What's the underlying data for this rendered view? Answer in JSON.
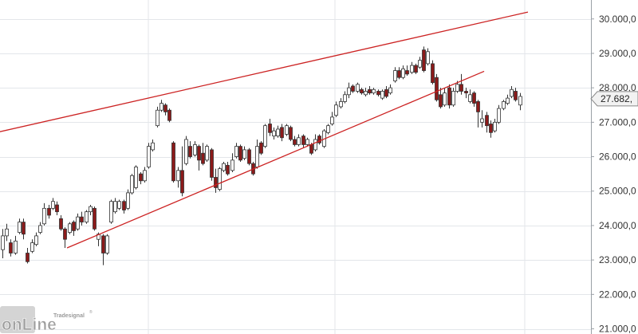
{
  "watermark": {
    "brand": "Tradesignal",
    "mark": "®",
    "product": "onLine"
  },
  "colors": {
    "up_fill": "#ffffff",
    "down_fill": "#8b1a1a",
    "candle_stroke": "#333333",
    "trendline": "#cc2222",
    "grid": "#e3e6ea"
  },
  "chart_data": {
    "type": "candlestick",
    "title": "",
    "xlabel": "",
    "ylabel": "",
    "ylim": [
      20850,
      30550
    ],
    "yticks": [
      {
        "value": 21000,
        "label": "21.000,0"
      },
      {
        "value": 22000,
        "label": "22.000,0"
      },
      {
        "value": 23000,
        "label": "23.000,0"
      },
      {
        "value": 24000,
        "label": "24.000,0"
      },
      {
        "value": 25000,
        "label": "25.000,0"
      },
      {
        "value": 26000,
        "label": "26.000,0"
      },
      {
        "value": 27000,
        "label": "27.000,0"
      },
      {
        "value": 28000,
        "label": "28.000,0"
      },
      {
        "value": 29000,
        "label": "29.000,0"
      },
      {
        "value": 30000,
        "label": "30.000,0"
      }
    ],
    "last_price": {
      "value": 27682,
      "label": "27.682,"
    },
    "grid": true,
    "candles": [
      [
        23300,
        23700,
        23050,
        23900
      ],
      [
        23700,
        23900,
        23550,
        24050
      ],
      [
        23500,
        23200,
        23100,
        23600
      ],
      [
        23200,
        23550,
        23150,
        23700
      ],
      [
        23800,
        24100,
        23750,
        24200
      ],
      [
        24100,
        23750,
        23600,
        24200
      ],
      [
        23200,
        22950,
        22900,
        23350
      ],
      [
        23250,
        23500,
        23200,
        23600
      ],
      [
        23450,
        23700,
        23400,
        23800
      ],
      [
        23800,
        24000,
        23750,
        24100
      ],
      [
        24050,
        24500,
        24000,
        24650
      ],
      [
        24500,
        24300,
        24200,
        24600
      ],
      [
        24500,
        24700,
        24450,
        24800
      ],
      [
        24600,
        24400,
        24300,
        24700
      ],
      [
        24200,
        23900,
        23850,
        24300
      ],
      [
        23900,
        23600,
        23350,
        23950
      ],
      [
        23800,
        24050,
        23750,
        24100
      ],
      [
        24100,
        23850,
        23700,
        24150
      ],
      [
        23900,
        24250,
        23850,
        24350
      ],
      [
        24250,
        24100,
        24000,
        24400
      ],
      [
        24100,
        24400,
        24050,
        24450
      ],
      [
        24400,
        24550,
        24300,
        24600
      ],
      [
        24500,
        23900,
        23850,
        24550
      ],
      [
        23600,
        23750,
        23400,
        23800
      ],
      [
        23700,
        23200,
        22850,
        23750
      ],
      [
        23200,
        23700,
        23150,
        23750
      ],
      [
        24100,
        24700,
        24050,
        24750
      ],
      [
        24400,
        24700,
        24350,
        24800
      ],
      [
        24500,
        24700,
        24450,
        24750
      ],
      [
        24700,
        24450,
        24350,
        24750
      ],
      [
        24500,
        24950,
        24450,
        25050
      ],
      [
        24950,
        25450,
        24900,
        25500
      ],
      [
        25100,
        25700,
        25050,
        25750
      ],
      [
        25500,
        25300,
        25200,
        25550
      ],
      [
        25300,
        25600,
        25250,
        25700
      ],
      [
        25700,
        26300,
        25650,
        26400
      ],
      [
        26200,
        26400,
        26150,
        26500
      ],
      [
        26900,
        27350,
        26850,
        27450
      ],
      [
        27350,
        27550,
        27300,
        27650
      ],
      [
        27500,
        27300,
        27200,
        27550
      ],
      [
        27350,
        27050,
        27000,
        27400
      ],
      [
        26400,
        25300,
        25250,
        26450
      ],
      [
        25300,
        25600,
        25100,
        25700
      ],
      [
        25600,
        24950,
        24850,
        26300
      ],
      [
        25800,
        26500,
        25750,
        26600
      ],
      [
        26300,
        26000,
        25950,
        26450
      ],
      [
        26050,
        26350,
        26000,
        26450
      ],
      [
        26300,
        25900,
        25600,
        26350
      ],
      [
        26100,
        25800,
        25750,
        26400
      ],
      [
        25900,
        26300,
        25850,
        26350
      ],
      [
        26200,
        25400,
        25300,
        26250
      ],
      [
        25400,
        25100,
        24950,
        25650
      ],
      [
        25050,
        25650,
        25000,
        25700
      ],
      [
        25600,
        25800,
        25550,
        25850
      ],
      [
        25750,
        25500,
        25450,
        25850
      ],
      [
        25600,
        25900,
        25550,
        26100
      ],
      [
        26000,
        26300,
        25950,
        26400
      ],
      [
        26300,
        25900,
        25850,
        26350
      ],
      [
        25950,
        26200,
        25900,
        26300
      ],
      [
        26200,
        25800,
        25750,
        26250
      ],
      [
        25800,
        25500,
        25450,
        25850
      ],
      [
        25700,
        26300,
        25650,
        26500
      ],
      [
        26400,
        26100,
        26050,
        26450
      ],
      [
        26300,
        26900,
        26250,
        26950
      ],
      [
        26950,
        26700,
        26600,
        27100
      ],
      [
        26600,
        26750,
        26500,
        26850
      ],
      [
        26600,
        26800,
        26550,
        26900
      ],
      [
        26850,
        26550,
        26450,
        26950
      ],
      [
        26650,
        26900,
        26600,
        26950
      ],
      [
        26850,
        26500,
        26450,
        26900
      ],
      [
        26500,
        26350,
        26300,
        26600
      ],
      [
        26350,
        26550,
        26300,
        26650
      ],
      [
        26600,
        26350,
        26250,
        26650
      ],
      [
        26350,
        26500,
        26300,
        26550
      ],
      [
        26350,
        26100,
        26050,
        26400
      ],
      [
        26200,
        26500,
        26150,
        26650
      ],
      [
        26600,
        26400,
        26350,
        26650
      ],
      [
        26300,
        26750,
        26250,
        26800
      ],
      [
        26700,
        26900,
        26650,
        26950
      ],
      [
        26950,
        27150,
        26900,
        27300
      ],
      [
        27200,
        27500,
        27150,
        27600
      ],
      [
        27450,
        27600,
        27400,
        27700
      ],
      [
        27600,
        27800,
        27550,
        27900
      ],
      [
        27800,
        28000,
        27700,
        28150
      ],
      [
        28050,
        27900,
        27850,
        28100
      ],
      [
        27900,
        28100,
        27850,
        28150
      ],
      [
        27950,
        27850,
        27800,
        28000
      ],
      [
        27800,
        27900,
        27750,
        28000
      ],
      [
        27950,
        27850,
        27800,
        28050
      ],
      [
        27850,
        27950,
        27800,
        28000
      ],
      [
        27900,
        27800,
        27750,
        27950
      ],
      [
        27700,
        27900,
        27650,
        27950
      ],
      [
        27950,
        27750,
        27700,
        28050
      ],
      [
        27850,
        28000,
        27800,
        28100
      ],
      [
        28200,
        28500,
        28150,
        28600
      ],
      [
        28500,
        28300,
        28250,
        28600
      ],
      [
        28300,
        28550,
        28250,
        28650
      ],
      [
        28500,
        28400,
        28350,
        28650
      ],
      [
        28450,
        28650,
        28400,
        28750
      ],
      [
        28650,
        28450,
        28400,
        28700
      ],
      [
        28600,
        28800,
        28550,
        28900
      ],
      [
        29100,
        28500,
        28450,
        29200
      ],
      [
        28700,
        29050,
        28650,
        29150
      ],
      [
        28700,
        28150,
        28100,
        28800
      ],
      [
        28300,
        27650,
        27600,
        28400
      ],
      [
        27800,
        27450,
        27400,
        28000
      ],
      [
        27500,
        27850,
        27450,
        28000
      ],
      [
        28000,
        27500,
        27400,
        28100
      ],
      [
        27500,
        27900,
        27450,
        28000
      ],
      [
        27900,
        28100,
        27850,
        28200
      ],
      [
        28100,
        27900,
        27800,
        28400
      ],
      [
        27900,
        27850,
        27700,
        28000
      ],
      [
        27600,
        27800,
        27550,
        27950
      ],
      [
        27850,
        27550,
        27450,
        27900
      ],
      [
        27600,
        27300,
        26850,
        27650
      ],
      [
        27000,
        27100,
        26850,
        27350
      ],
      [
        27200,
        26900,
        26700,
        27300
      ],
      [
        26950,
        26700,
        26550,
        27050
      ],
      [
        26750,
        27000,
        26700,
        27100
      ],
      [
        27000,
        27400,
        26950,
        27500
      ],
      [
        27400,
        27600,
        27350,
        27650
      ],
      [
        27550,
        27700,
        27500,
        27800
      ],
      [
        27750,
        27950,
        27700,
        28050
      ],
      [
        27900,
        27650,
        27600,
        28000
      ],
      [
        27500,
        27750,
        27350,
        27850
      ]
    ],
    "trendlines": [
      {
        "name": "upper",
        "x0": -1.5,
        "y0": 26700,
        "x1": 126,
        "y1": 30200
      },
      {
        "name": "lower",
        "x0": 15.5,
        "y0": 23350,
        "x1": 115.5,
        "y1": 28480
      }
    ]
  }
}
